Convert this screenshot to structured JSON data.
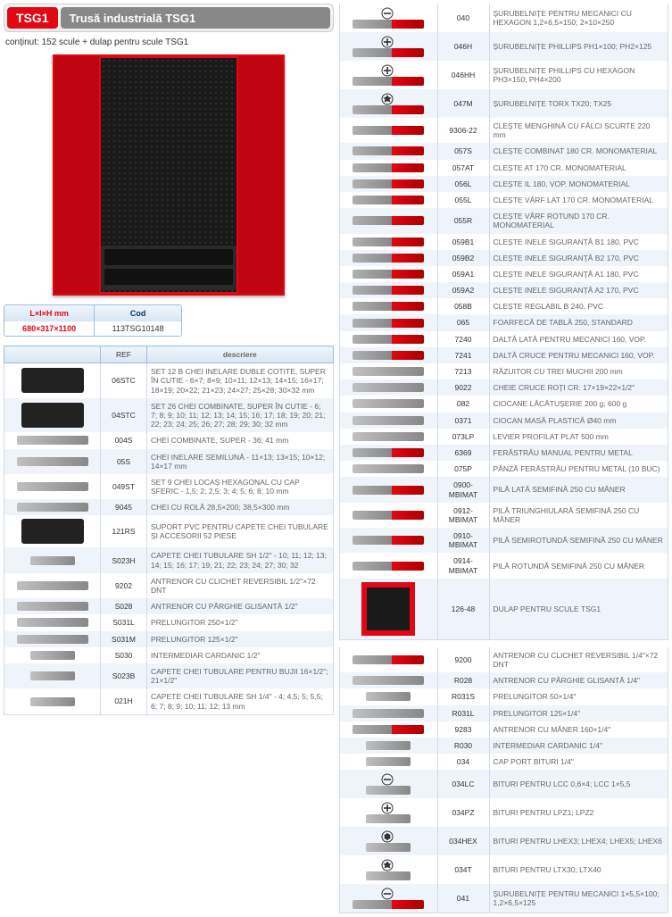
{
  "header": {
    "badge": "TSG1",
    "title": "Trusă industrială TSG1",
    "subtitle": "conținut: 152 scule + dulap pentru scule TSG1"
  },
  "colors": {
    "accent": "#e30613",
    "header_grey": "#888888",
    "table_header_bg_top": "#f0f6fc",
    "table_header_bg_bottom": "#d6e6f5",
    "table_border": "#9bbfe3",
    "row_even": "#eef4fa",
    "row_odd": "#ffffff",
    "text": "#333333",
    "desc_text": "#666666"
  },
  "cabinet": {
    "body_color": "#e30613",
    "panel_color": "#1a1a1a"
  },
  "dims": {
    "header1": "L×l×H mm",
    "header2": "Cod",
    "row": {
      "dims": "680×317×1100",
      "code": "113TSG10148"
    }
  },
  "left_table": {
    "headers": {
      "img": "",
      "ref": "REF",
      "desc": "descriere"
    },
    "rows": [
      {
        "shape": "box",
        "ref": "06STC",
        "desc": "SET 12 B CHEI INELARE DUBLE COTITE, SUPER ÎN CUTIE - 6×7; 8×9; 10×11; 12×13; 14×15; 16×17; 18×19; 20×22; 21×23; 24×27; 25×28; 30×32 mm"
      },
      {
        "shape": "box",
        "ref": "04STC",
        "desc": "SET 26 CHEI COMBINATE, SUPER ÎN CUTIE - 6; 7; 8; 9; 10; 11; 12; 13; 14; 15; 16; 17; 18; 19; 20; 21; 22; 23; 24; 25; 26; 27; 28; 29; 30; 32 mm"
      },
      {
        "shape": "plain",
        "ref": "004S",
        "desc": "CHEI COMBINATE, SUPER - 36; 41 mm"
      },
      {
        "shape": "plain",
        "ref": "05S",
        "desc": "CHEI INELARE SEMILUNĂ - 11×13; 13×15; 10×12; 14×17 mm"
      },
      {
        "shape": "plain",
        "ref": "049ST",
        "desc": "SET 9 CHEI LOCAȘ HEXAGONAL CU CAP SFERIC - 1,5; 2; 2,5; 3; 4; 5; 6; 8; 10 mm"
      },
      {
        "shape": "plain",
        "ref": "9045",
        "desc": "CHEI CU ROLĂ 28,5×200; 38,5×300 mm"
      },
      {
        "shape": "box",
        "ref": "121RS",
        "desc": "SUPORT PVC PENTRU CAPETE CHEI TUBULARE ȘI ACCESORII 52 PIESE"
      },
      {
        "shape": "plain short",
        "ref": "S023H",
        "desc": "CAPETE CHEI TUBULARE SH 1/2\" - 10; 11; 12; 13; 14; 15; 16; 17; 19; 21; 22; 23; 24; 27; 30; 32"
      },
      {
        "shape": "plain",
        "ref": "9202",
        "desc": "ANTRENOR CU CLICHET REVERSIBIL 1/2\"×72 DNT"
      },
      {
        "shape": "plain",
        "ref": "S028",
        "desc": "ANTRENOR CU PÂRGHIE GLISANTĂ 1/2\""
      },
      {
        "shape": "plain",
        "ref": "S031L",
        "desc": "PRELUNGITOR 250×1/2\""
      },
      {
        "shape": "plain",
        "ref": "S031M",
        "desc": "PRELUNGITOR 125×1/2\""
      },
      {
        "shape": "plain short",
        "ref": "S030",
        "desc": "INTERMEDIAR CARDANIC 1/2\""
      },
      {
        "shape": "plain short",
        "ref": "S023B",
        "desc": "CAPETE CHEI TUBULARE PENTRU BUJII 16×1/2\"; 21×1/2\""
      },
      {
        "shape": "plain short",
        "ref": "021H",
        "desc": "CAPETE CHEI TUBULARE SH 1/4\" - 4; 4,5; 5; 5,5; 6; 7; 8; 9; 10; 11; 12; 13 mm"
      }
    ]
  },
  "right_table": {
    "rows": [
      {
        "icon": "flat",
        "shape": "handle",
        "ref": "040",
        "desc": "ȘURUBELNIȚE PENTRU MECANICI CU HEXAGON 1,2×6,5×150; 2×10×250"
      },
      {
        "icon": "phillips",
        "shape": "handle",
        "ref": "046H",
        "desc": "ȘURUBELNIȚE PHILLIPS PH1×100; PH2×125"
      },
      {
        "icon": "phillips",
        "shape": "handle",
        "ref": "046HH",
        "desc": "ȘURUBELNIȚE PHILLIPS CU HEXAGON PH3×150; PH4×200"
      },
      {
        "icon": "torx",
        "shape": "handle",
        "ref": "047M",
        "desc": "ȘURUBELNIȚE TORX TX20; TX25"
      },
      {
        "icon": "",
        "shape": "handle",
        "ref": "9306-22",
        "desc": "CLEȘTE MENGHINĂ CU FĂLCI SCURTE 220 mm"
      },
      {
        "icon": "",
        "shape": "handle",
        "ref": "057S",
        "desc": "CLEȘTE COMBINAT 180 CR. MONOMATERIAL"
      },
      {
        "icon": "",
        "shape": "handle",
        "ref": "057AT",
        "desc": "CLEȘTE AT 170 CR. MONOMATERIAL"
      },
      {
        "icon": "",
        "shape": "handle",
        "ref": "056L",
        "desc": "CLEȘTE IL 180, VOP. MONOMATERIAL"
      },
      {
        "icon": "",
        "shape": "handle",
        "ref": "055L",
        "desc": "CLEȘTE VÂRF LAT 170 CR. MONOMATERIAL"
      },
      {
        "icon": "",
        "shape": "handle",
        "ref": "055R",
        "desc": "CLEȘTE VÂRF ROTUND 170 CR. MONOMATERIAL"
      },
      {
        "icon": "",
        "shape": "handle",
        "ref": "059B1",
        "desc": "CLEȘTE INELE SIGURANȚĂ B1 180, PVC"
      },
      {
        "icon": "",
        "shape": "handle",
        "ref": "059B2",
        "desc": "CLEȘTE INELE SIGURANȚĂ B2 170, PVC"
      },
      {
        "icon": "",
        "shape": "handle",
        "ref": "059A1",
        "desc": "CLEȘTE INELE SIGURANȚĂ A1 180, PVC"
      },
      {
        "icon": "",
        "shape": "handle",
        "ref": "059A2",
        "desc": "CLEȘTE INELE SIGURANȚĂ A2 170, PVC"
      },
      {
        "icon": "",
        "shape": "handle",
        "ref": "058B",
        "desc": "CLEȘTE REGLABIL B 240, PVC"
      },
      {
        "icon": "",
        "shape": "handle",
        "ref": "065",
        "desc": "FOARFECĂ DE TABLĂ 250, STANDARD"
      },
      {
        "icon": "",
        "shape": "handle",
        "ref": "7240",
        "desc": "DALTĂ LATĂ PENTRU MECANICI 160, VOP."
      },
      {
        "icon": "",
        "shape": "handle",
        "ref": "7241",
        "desc": "DALTĂ CRUCE PENTRU MECANICI 160, VOP."
      },
      {
        "icon": "",
        "shape": "plain",
        "ref": "7213",
        "desc": "RĂZUITOR CU TREI MUCHII 200 mm"
      },
      {
        "icon": "",
        "shape": "plain",
        "ref": "9022",
        "desc": "CHEIE CRUCE ROȚI CR. 17×19×22×1/2\""
      },
      {
        "icon": "",
        "shape": "plain",
        "ref": "082",
        "desc": "CIOCANE LĂCĂTUȘERIE 200 g; 600 g"
      },
      {
        "icon": "",
        "shape": "plain",
        "ref": "0371",
        "desc": "CIOCAN MASĂ PLASTICĂ Ø40 mm"
      },
      {
        "icon": "",
        "shape": "plain",
        "ref": "073LP",
        "desc": "LEVIER PROFILAT PLAT 500 mm"
      },
      {
        "icon": "",
        "shape": "handle",
        "ref": "6369",
        "desc": "FERĂSTRĂU MANUAL PENTRU METAL"
      },
      {
        "icon": "",
        "shape": "plain",
        "ref": "075P",
        "desc": "PÂNZĂ FERĂSTRĂU PENTRU METAL (10 BUC)"
      },
      {
        "icon": "",
        "shape": "handle",
        "ref": "0900-MBIMAT",
        "desc": "PILĂ LATĂ SEMIFINĂ 250 CU MÂNER"
      },
      {
        "icon": "",
        "shape": "handle",
        "ref": "0912-MBIMAT",
        "desc": "PILĂ TRIUNGHIULARĂ SEMIFINĂ 250 CU MÂNER"
      },
      {
        "icon": "",
        "shape": "handle",
        "ref": "0910-MBIMAT",
        "desc": "PILĂ SEMIROTUNDĂ SEMIFINĂ 250 CU MÂNER"
      },
      {
        "icon": "",
        "shape": "handle",
        "ref": "0914-MBIMAT",
        "desc": "PILĂ ROTUNDĂ SEMIFINĂ 250 CU MÂNER"
      },
      {
        "icon": "",
        "shape": "cabinet",
        "ref": "126-48",
        "desc": "DULAP PENTRU SCULE TSG1"
      }
    ],
    "rows2": [
      {
        "icon": "",
        "shape": "handle",
        "ref": "9200",
        "desc": "ANTRENOR CU CLICHET REVERSIBIL 1/4\"×72 DNT"
      },
      {
        "icon": "",
        "shape": "plain",
        "ref": "R028",
        "desc": "ANTRENOR CU PÂRGHIE GLISANTĂ 1/4\""
      },
      {
        "icon": "",
        "shape": "plain short",
        "ref": "R031S",
        "desc": "PRELUNGITOR 50×1/4\""
      },
      {
        "icon": "",
        "shape": "plain",
        "ref": "R031L",
        "desc": "PRELUNGITOR 125×1/4\""
      },
      {
        "icon": "",
        "shape": "handle",
        "ref": "9283",
        "desc": "ANTRENOR CU MÂNER 160×1/4\""
      },
      {
        "icon": "",
        "shape": "plain short",
        "ref": "R030",
        "desc": "INTERMEDIAR CARDANIC 1/4\""
      },
      {
        "icon": "",
        "shape": "plain short",
        "ref": "034",
        "desc": "CAP PORT BITURI 1/4\""
      },
      {
        "icon": "flat",
        "shape": "plain short",
        "ref": "034LC",
        "desc": "BITURI PENTRU LCC 0,6×4; LCC 1×5,5"
      },
      {
        "icon": "phillips",
        "shape": "plain short",
        "ref": "034PZ",
        "desc": "BITURI PENTRU LPZ1; LPZ2"
      },
      {
        "icon": "hex",
        "shape": "plain short",
        "ref": "034HEX",
        "desc": "BITURI PENTRU LHEX3; LHEX4; LHEX5; LHEX6"
      },
      {
        "icon": "torx",
        "shape": "plain short",
        "ref": "034T",
        "desc": "BITURI PENTRU LTX30; LTX40"
      },
      {
        "icon": "flat",
        "shape": "handle",
        "ref": "041",
        "desc": "ȘURUBELNIȚE PENTRU MECANICI 1×5,5×100; 1,2×6,5×125"
      }
    ]
  }
}
